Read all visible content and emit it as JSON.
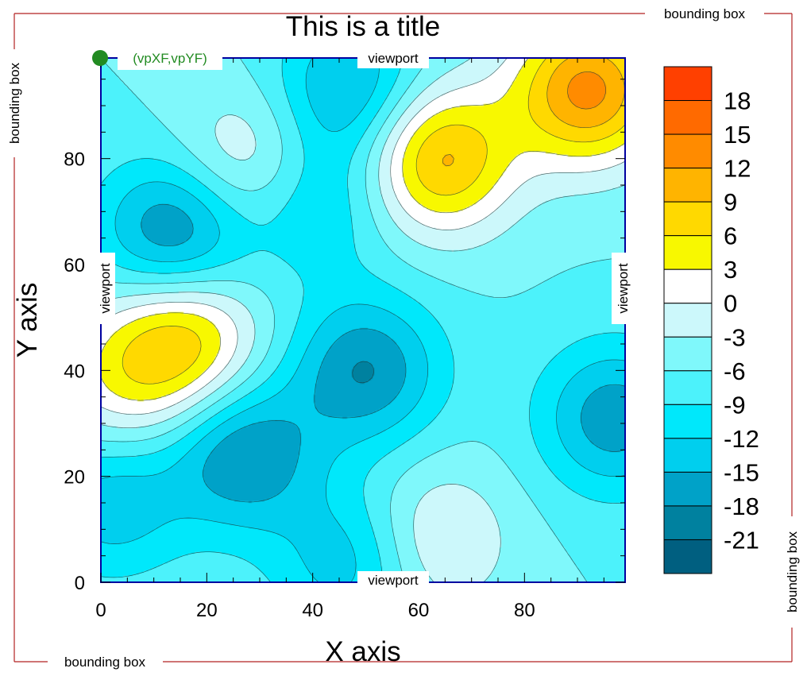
{
  "chart_data": {
    "type": "contour",
    "title": "This is a title",
    "xlabel": "X axis",
    "ylabel": "Y axis",
    "xlim": [
      0,
      99
    ],
    "ylim": [
      0,
      99
    ],
    "x_ticks": [
      0,
      20,
      40,
      60,
      80
    ],
    "y_ticks": [
      0,
      20,
      40,
      60,
      80
    ],
    "grid": false,
    "levels": [
      -21,
      -18,
      -15,
      -12,
      -9,
      -6,
      -3,
      0,
      3,
      6,
      9,
      12,
      15,
      18
    ],
    "colorbar": {
      "labels": [
        "18",
        "15",
        "12",
        "9",
        "6",
        "3",
        "0",
        "-3",
        "-6",
        "-9",
        "-12",
        "-15",
        "-18",
        "-21"
      ],
      "colors": [
        "#ff4000",
        "#ff6a00",
        "#ff8b00",
        "#ffb400",
        "#ffd900",
        "#f8f800",
        "#ffffff",
        "#ccf8fb",
        "#7ff8fb",
        "#4cf2fb",
        "#00e8fb",
        "#00cfee",
        "#00a2c8",
        "#00819f",
        "#005f80"
      ]
    },
    "features": [
      {
        "kind": "max",
        "x": 92,
        "y": 93,
        "value": 13
      },
      {
        "kind": "max",
        "x": 64,
        "y": 80,
        "value": 10
      },
      {
        "kind": "max",
        "x": 16,
        "y": 46,
        "value": 7
      },
      {
        "kind": "max",
        "x": 28,
        "y": 79,
        "value": 2
      },
      {
        "kind": "max",
        "x": 63,
        "y": 8,
        "value": 1
      },
      {
        "kind": "max",
        "x": 4,
        "y": 38,
        "value": 1.5
      },
      {
        "kind": "min",
        "x": 14,
        "y": 66,
        "value": -19
      },
      {
        "kind": "min",
        "x": 50,
        "y": 40,
        "value": -18
      },
      {
        "kind": "min",
        "x": 27,
        "y": 24,
        "value": -18
      },
      {
        "kind": "min",
        "x": 97,
        "y": 31,
        "value": -17
      },
      {
        "kind": "min",
        "x": 47,
        "y": 93,
        "value": -16
      },
      {
        "kind": "min",
        "x": 47,
        "y": 4,
        "value": -14
      },
      {
        "kind": "min",
        "x": 2,
        "y": 15,
        "value": -14
      },
      {
        "kind": "min",
        "x": 40,
        "y": 72,
        "value": -13
      }
    ]
  },
  "annotations": {
    "viewport_top": "viewport",
    "viewport_bottom": "viewport",
    "viewport_left": "viewport",
    "viewport_right": "viewport",
    "bbox_top": "bounding box",
    "bbox_bottom": "bounding box",
    "bbox_left": "bounding box",
    "bbox_right": "bounding box",
    "corner_label": "(vpXF,vpYF)"
  },
  "colors": {
    "frame": "#0000a0",
    "bbox": "#b22222",
    "corner_dot": "#228b22",
    "corner_text": "#228b22"
  }
}
